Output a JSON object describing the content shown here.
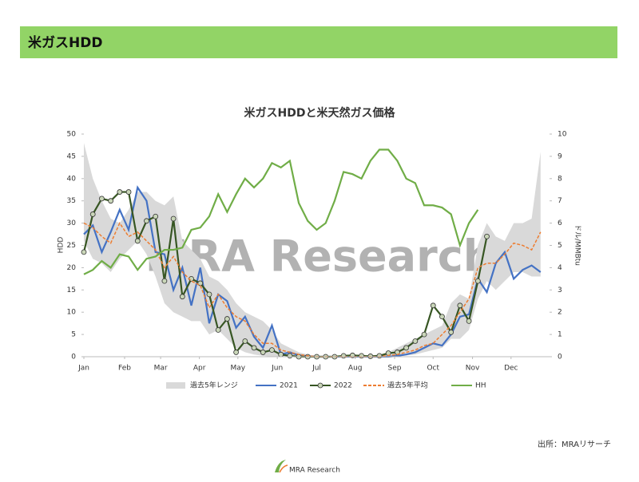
{
  "header": {
    "title": "米ガスHDD"
  },
  "chart_data": {
    "type": "line",
    "title": "米ガスHDDと米天然ガス価格",
    "ylabel": "HDD",
    "y2label": "ドル/MMBtu",
    "watermark": "MRA Research",
    "x": [
      0,
      1,
      2,
      3,
      4,
      5,
      6,
      7,
      8,
      9,
      10,
      11,
      12,
      13,
      14,
      15,
      16,
      17,
      18,
      19,
      20,
      21,
      22,
      23,
      24,
      25,
      26,
      27,
      28,
      29,
      30,
      31,
      32,
      33,
      34,
      35,
      36,
      37,
      38,
      39,
      40,
      41,
      42,
      43,
      44,
      45,
      46,
      47,
      48,
      49,
      50,
      51
    ],
    "xlim": [
      0,
      52
    ],
    "xticks": [
      {
        "value": 0,
        "label": "Jan"
      },
      {
        "value": 4.55,
        "label": "Feb"
      },
      {
        "value": 8.57,
        "label": "Mar"
      },
      {
        "value": 12.9,
        "label": "Apr"
      },
      {
        "value": 17.2,
        "label": "May"
      },
      {
        "value": 21.6,
        "label": "Jun"
      },
      {
        "value": 26,
        "label": "Jul"
      },
      {
        "value": 30.3,
        "label": "Aug"
      },
      {
        "value": 34.7,
        "label": "Sep"
      },
      {
        "value": 39,
        "label": "Oct"
      },
      {
        "value": 43.4,
        "label": "Nov"
      },
      {
        "value": 47.7,
        "label": "Dec"
      }
    ],
    "ylim": [
      0,
      50
    ],
    "yticks": [
      0,
      5,
      10,
      15,
      20,
      25,
      30,
      35,
      40,
      45,
      50
    ],
    "y2lim": [
      0,
      10
    ],
    "y2ticks": [
      0,
      1,
      2,
      3,
      4,
      5,
      6,
      7,
      8,
      9,
      10
    ],
    "series": [
      {
        "name": "過去5年レンジ",
        "color": "#d9d9d9",
        "kind": "range",
        "low": [
          26,
          22,
          21,
          19,
          22,
          24,
          26,
          23,
          18,
          12,
          10,
          9,
          8,
          8,
          5,
          6,
          4,
          2,
          1,
          0.5,
          0.2,
          0,
          0,
          0,
          0,
          0,
          0,
          0,
          0,
          0,
          0,
          0,
          0,
          0,
          0,
          0.1,
          0.3,
          0.5,
          1,
          1.5,
          2,
          4,
          4,
          6,
          13,
          17,
          15,
          17,
          19,
          19,
          18,
          18
        ],
        "high": [
          48,
          40,
          35,
          31,
          30,
          33,
          37,
          37,
          35,
          34,
          36,
          26,
          24,
          22,
          18,
          17,
          15,
          12,
          10,
          9,
          8,
          6,
          3,
          2,
          1,
          0.5,
          0.2,
          0,
          0,
          0,
          0,
          0,
          0.3,
          0.5,
          1,
          2,
          3,
          4,
          5,
          6,
          7,
          12,
          14,
          13,
          25,
          30,
          27,
          26,
          30,
          30,
          31,
          46
        ]
      },
      {
        "name": "2021",
        "color": "#4472c4",
        "kind": "line",
        "values": [
          27.5,
          29.5,
          23.5,
          28,
          33,
          28.5,
          38,
          35,
          23.5,
          23,
          15,
          20,
          11.5,
          20,
          7.5,
          14,
          12.5,
          6.5,
          9,
          4.5,
          2,
          7,
          0.5,
          1,
          0.3,
          0.1,
          0,
          0,
          0,
          0,
          0,
          0,
          0,
          0,
          0,
          0.2,
          0.5,
          1,
          2,
          3,
          2.5,
          5,
          9,
          9.5,
          17.5,
          14.5,
          21,
          23.5,
          17.5,
          19.5,
          20.5,
          19
        ]
      },
      {
        "name": "2022",
        "color": "#375623",
        "marker": "#c9d6b8",
        "kind": "marker-line",
        "values": [
          23.5,
          32,
          35.5,
          35,
          37,
          37,
          26,
          30.5,
          31.5,
          17,
          31,
          13.5,
          17.5,
          16.5,
          14,
          6,
          8.5,
          1,
          3.5,
          2,
          1,
          1.5,
          0.5,
          0.2,
          0,
          0,
          0,
          0,
          0,
          0.2,
          0.3,
          0.2,
          0.1,
          0.2,
          0.8,
          1,
          2,
          3.5,
          5,
          11.5,
          9,
          5.5,
          11.5,
          8,
          17,
          27,
          null,
          null,
          null,
          null,
          null,
          null
        ]
      },
      {
        "name": "過去5年平均",
        "color": "#ed7d31",
        "kind": "dashed",
        "values": [
          30,
          29,
          27,
          25.5,
          30,
          27,
          28,
          26,
          24,
          20,
          22.5,
          19,
          17,
          16,
          11,
          14,
          11,
          9,
          8,
          5,
          3,
          3,
          1.5,
          1,
          0.5,
          0.2,
          0,
          0,
          0,
          0,
          0,
          0,
          0,
          0,
          0.3,
          0.5,
          1,
          1.5,
          2.5,
          3,
          5,
          7,
          10,
          13,
          20,
          21,
          21,
          23,
          25.5,
          25,
          24,
          28
        ]
      },
      {
        "name": "HH",
        "color": "#70ad47",
        "kind": "line",
        "axis": "y2",
        "values": [
          3.7,
          3.9,
          4.3,
          4,
          4.6,
          4.5,
          3.9,
          4.4,
          4.5,
          4.8,
          4.8,
          4.9,
          5.7,
          5.8,
          6.3,
          7.3,
          6.5,
          7.3,
          8,
          7.6,
          8,
          8.7,
          8.5,
          8.8,
          6.9,
          6.1,
          5.7,
          6,
          7,
          8.3,
          8.2,
          8,
          8.8,
          9.3,
          9.3,
          8.8,
          8,
          7.8,
          6.8,
          6.8,
          6.7,
          6.4,
          5,
          6,
          6.6,
          null,
          null,
          null,
          null,
          null,
          null,
          null
        ]
      }
    ]
  },
  "source": "出所：MRAリサーチ",
  "footer": {
    "logo": "MRA Research"
  }
}
